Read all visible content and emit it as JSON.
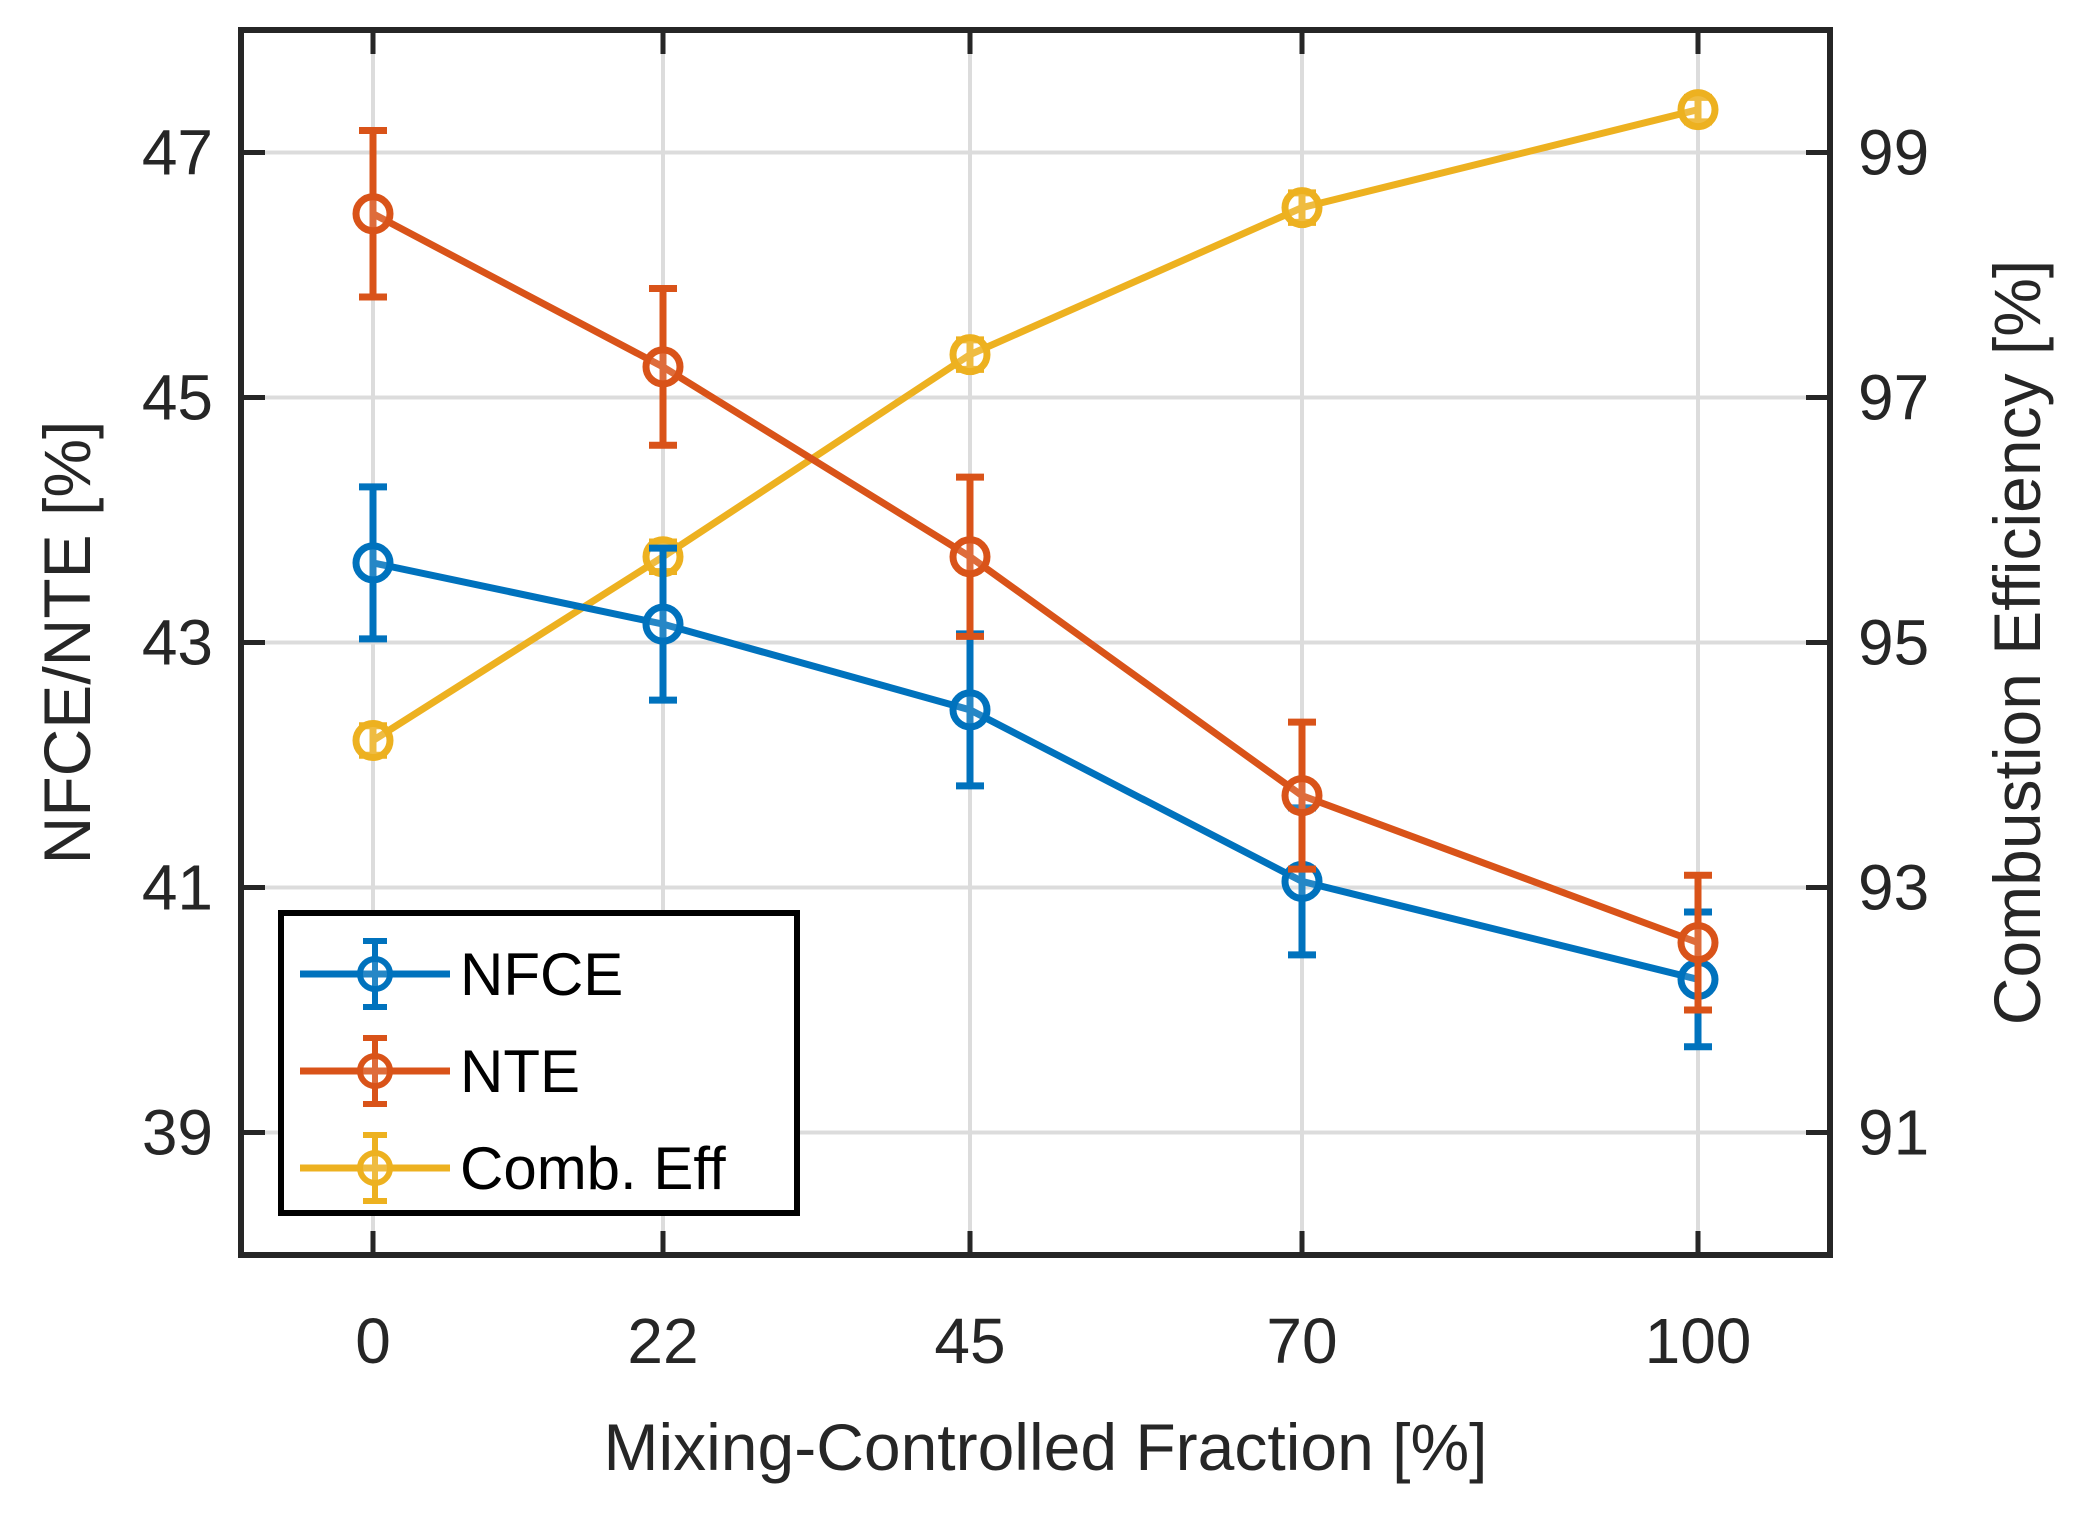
{
  "chart_data": {
    "type": "line",
    "title": "",
    "x": [
      0,
      22,
      45,
      70,
      100
    ],
    "xticklabels": [
      "0",
      "22",
      "45",
      "70",
      "100"
    ],
    "xlabel": "Mixing-Controlled Fraction [%]",
    "ylabel_left": "NFCE/NTE [%]",
    "ylabel_right": "Combustion Efficiency [%]",
    "ylim_left": [
      38,
      48
    ],
    "ylim_right": [
      90,
      100
    ],
    "yticks_left": [
      39,
      41,
      43,
      45,
      47
    ],
    "yticks_right": [
      91,
      93,
      95,
      97,
      99
    ],
    "grid": true,
    "legend_position": "bottom-left",
    "series": [
      {
        "name": "NFCE",
        "axis": "left",
        "color": "#0072BD",
        "values": [
          43.65,
          43.15,
          42.45,
          41.05,
          40.25
        ],
        "errors": [
          0.62,
          0.62,
          0.62,
          0.6,
          0.55
        ]
      },
      {
        "name": "NTE",
        "axis": "left",
        "color": "#D95319",
        "values": [
          46.5,
          45.25,
          43.7,
          41.75,
          40.55
        ],
        "errors": [
          0.68,
          0.64,
          0.65,
          0.6,
          0.55
        ]
      },
      {
        "name": "Comb. Eff",
        "axis": "right",
        "color": "#EDB120",
        "values": [
          94.2,
          95.7,
          97.35,
          98.55,
          99.35
        ],
        "errors": [
          0.12,
          0.12,
          0.12,
          0.12,
          0.1
        ]
      }
    ]
  }
}
